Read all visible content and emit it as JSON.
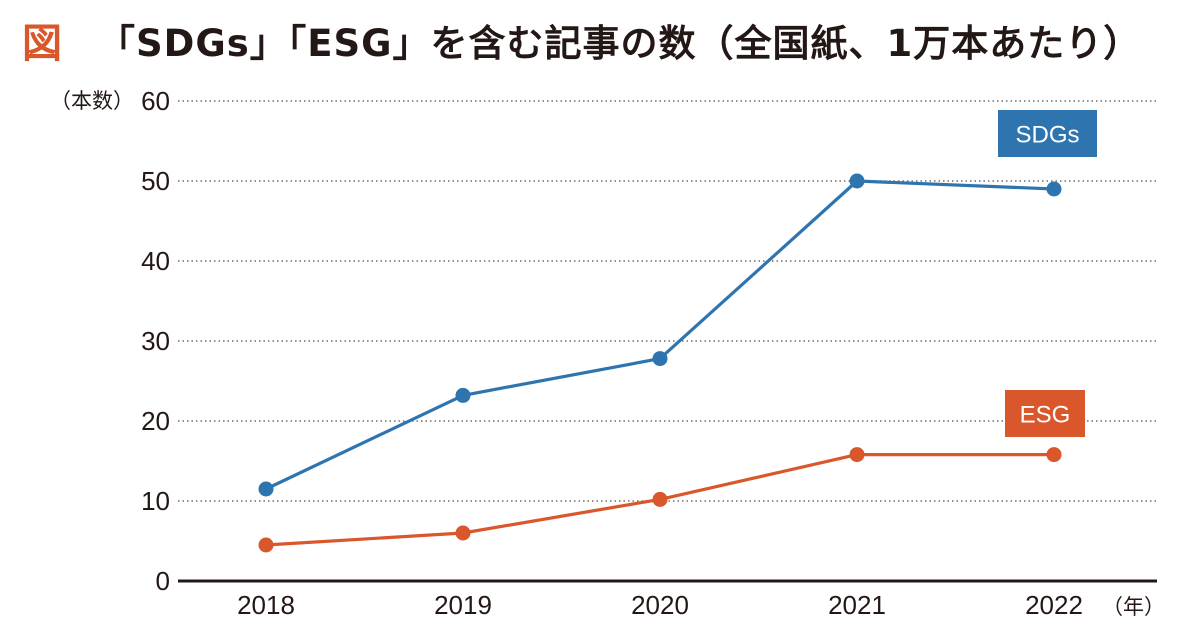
{
  "figure_mark": "図",
  "title": "「SDGs」「ESG」を含む記事の数（全国紙、1万本あたり）",
  "chart_data": {
    "type": "line",
    "ylabel": "（本数）",
    "xunit": "（年）",
    "categories": [
      "2018",
      "2019",
      "2020",
      "2021",
      "2022"
    ],
    "ylim": [
      0,
      60
    ],
    "yticks": [
      0,
      10,
      20,
      30,
      40,
      50,
      60
    ],
    "grid": true,
    "series": [
      {
        "name": "SDGs",
        "values": [
          11.5,
          23.2,
          27.8,
          50.0,
          49.0
        ],
        "color": "#2e75b0"
      },
      {
        "name": "ESG",
        "values": [
          4.5,
          6.0,
          10.2,
          15.8,
          15.8
        ],
        "color": "#d9572a"
      }
    ]
  }
}
